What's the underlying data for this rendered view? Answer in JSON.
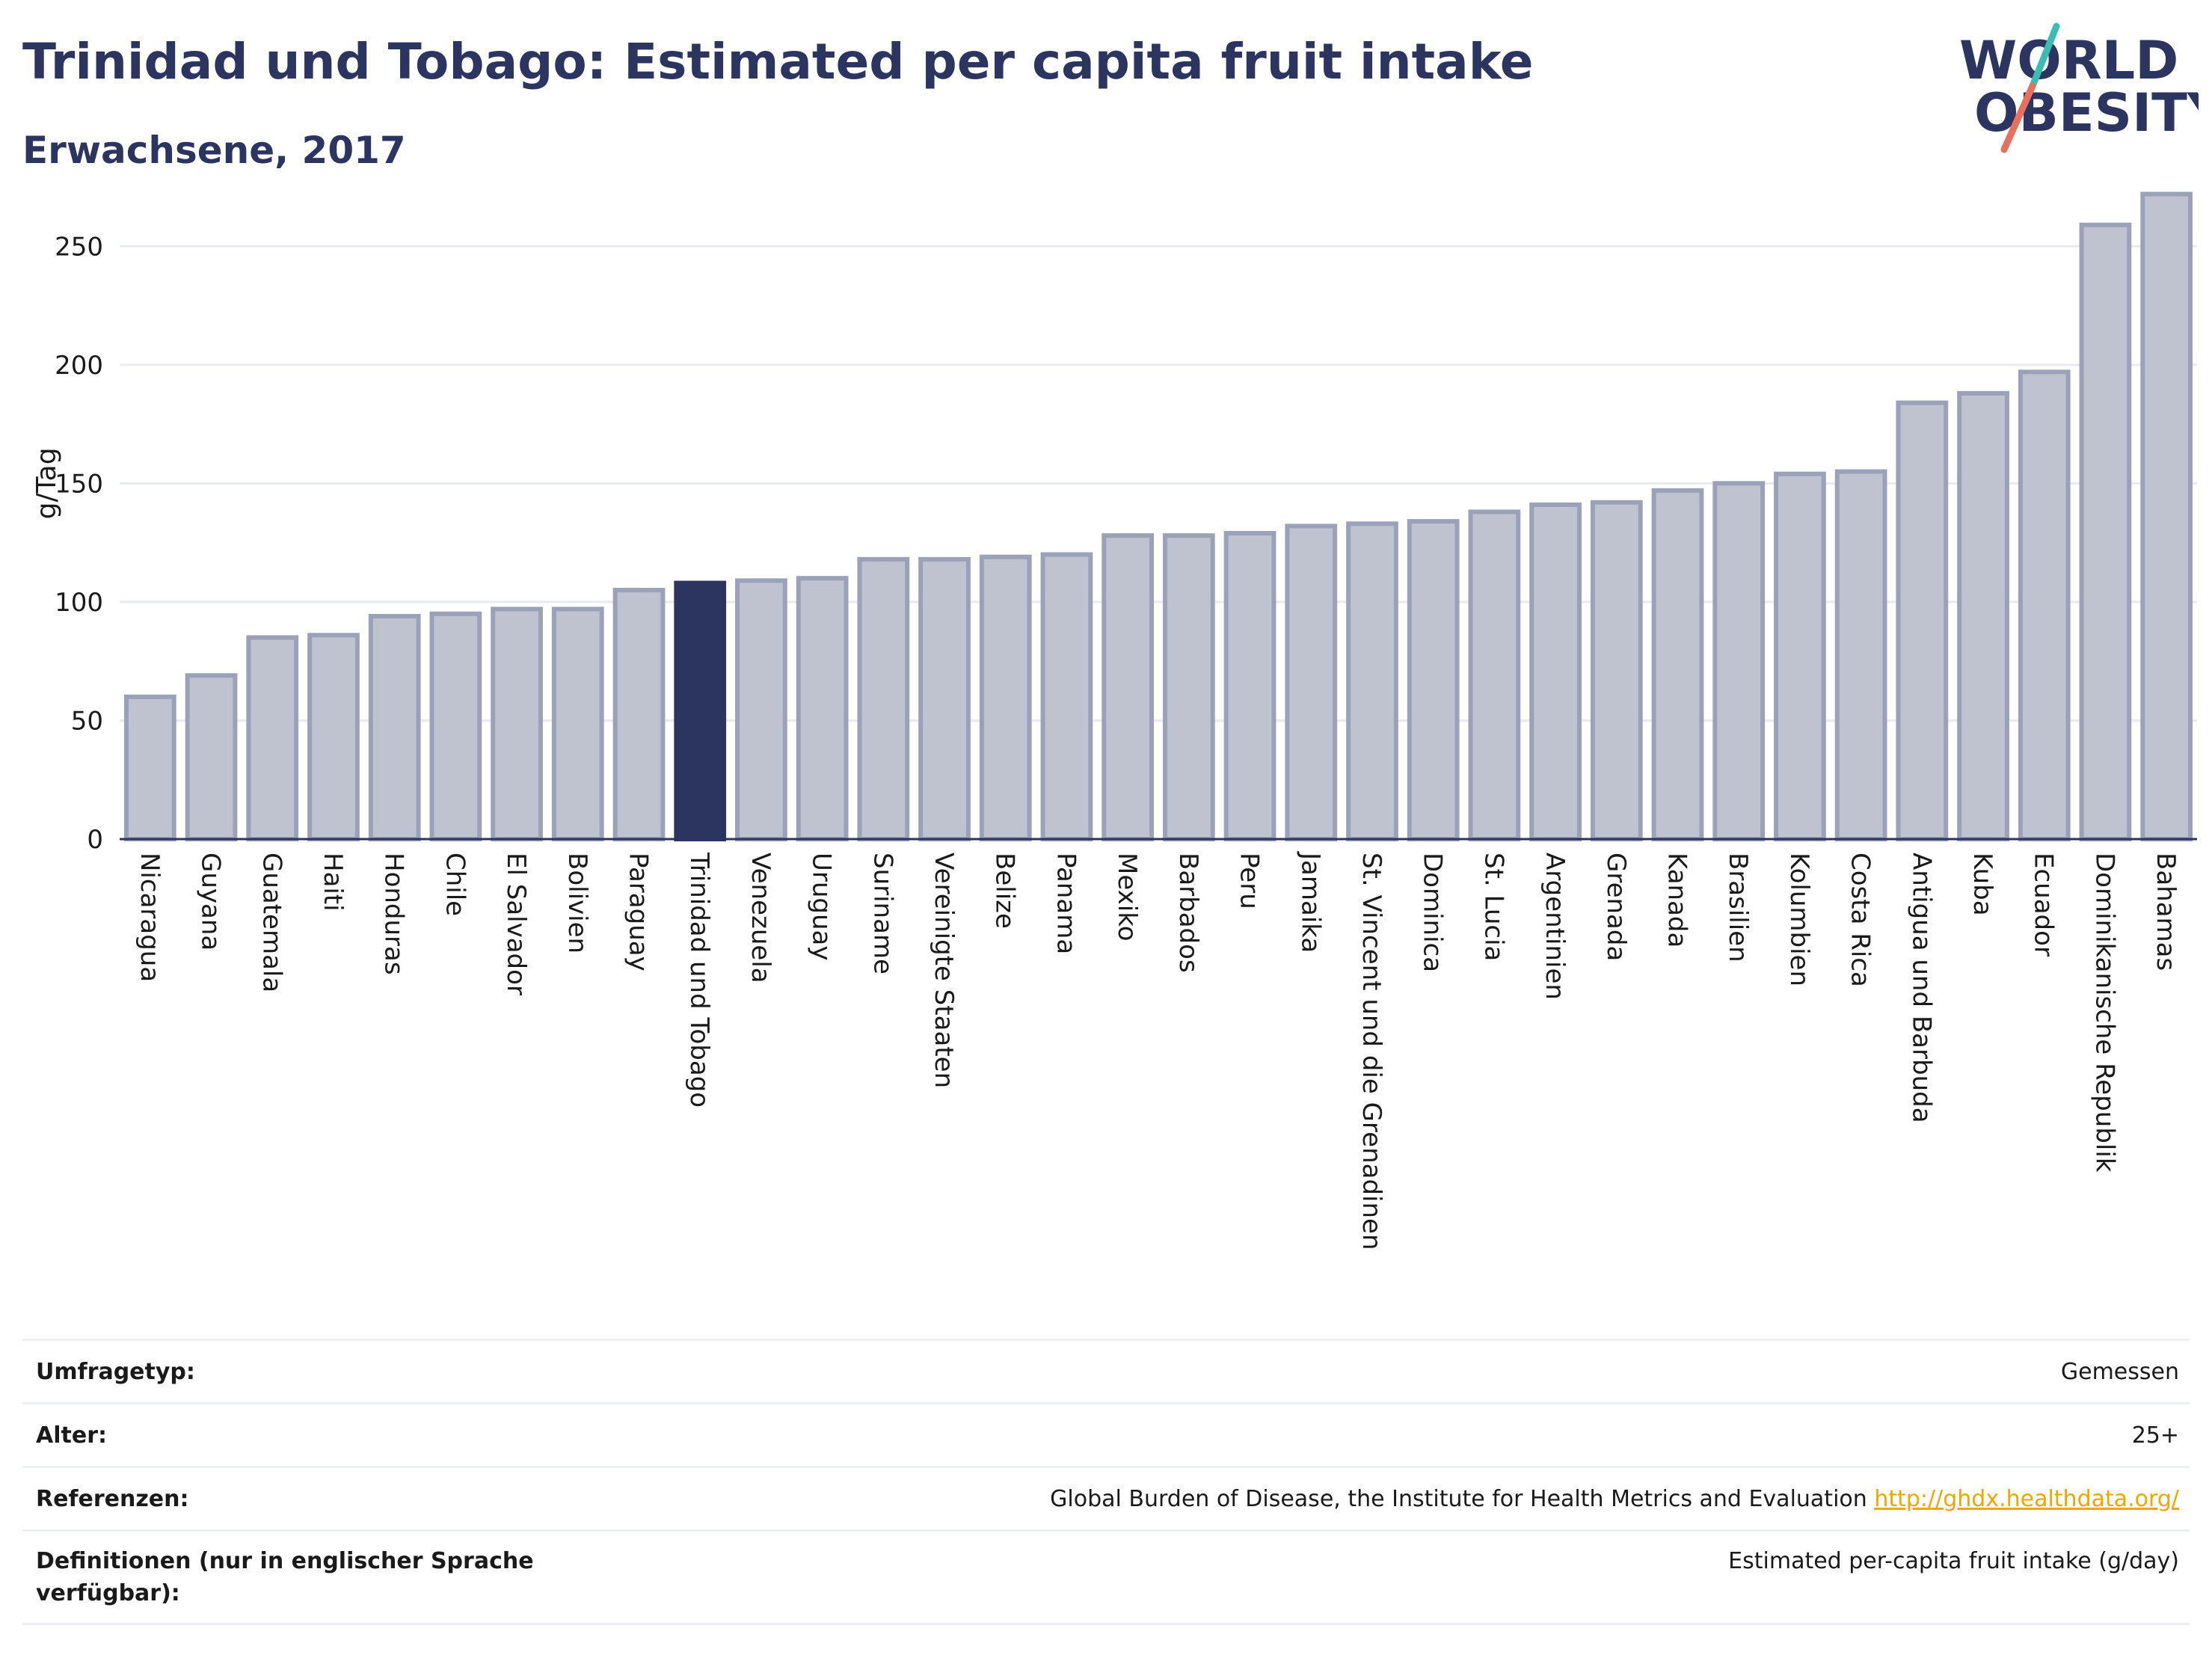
{
  "header": {
    "title": "Trinidad und Tobago: Estimated per capita fruit intake",
    "subtitle": "Erwachsene, 2017",
    "logo_line1": "WORLD",
    "logo_line2": "OBESITY"
  },
  "chart_data": {
    "type": "bar",
    "title": "Trinidad und Tobago: Estimated per capita fruit intake",
    "subtitle": "Erwachsene, 2017",
    "xlabel": "",
    "ylabel": "g/Tag",
    "ylim": [
      0,
      275
    ],
    "yticks": [
      0,
      50,
      100,
      150,
      200,
      250
    ],
    "grid": true,
    "highlight": "Trinidad und Tobago",
    "colors": {
      "bar_fill": "#bfc3d0",
      "bar_stroke": "#9aa1b8",
      "highlight": "#2c3560",
      "grid": "#e8eaf0",
      "axis": "#2c3560"
    },
    "categories": [
      "Nicaragua",
      "Guyana",
      "Guatemala",
      "Haiti",
      "Honduras",
      "Chile",
      "El Salvador",
      "Bolivien",
      "Paraguay",
      "Trinidad und Tobago",
      "Venezuela",
      "Uruguay",
      "Suriname",
      "Vereinigte Staaten",
      "Belize",
      "Panama",
      "Mexiko",
      "Barbados",
      "Peru",
      "Jamaika",
      "St. Vincent und die Grenadinen",
      "Dominica",
      "St. Lucia",
      "Argentinien",
      "Grenada",
      "Kanada",
      "Brasilien",
      "Kolumbien",
      "Costa Rica",
      "Antigua und Barbuda",
      "Kuba",
      "Ecuador",
      "Dominikanische Republik",
      "Bahamas"
    ],
    "values": [
      60,
      69,
      85,
      86,
      94,
      95,
      97,
      97,
      105,
      108,
      109,
      110,
      118,
      118,
      119,
      120,
      128,
      128,
      129,
      132,
      133,
      134,
      138,
      141,
      142,
      147,
      150,
      154,
      155,
      184,
      188,
      197,
      259,
      272
    ]
  },
  "info": {
    "rows": [
      {
        "key": "Umfragetyp:",
        "value": "Gemessen"
      },
      {
        "key": "Alter:",
        "value": "25+"
      },
      {
        "key": "Referenzen:",
        "value": "Global Burden of Disease, the Institute for Health Metrics and Evaluation ",
        "link": "http://ghdx.healthdata.org/"
      },
      {
        "key_line1": "Definitionen (nur in englischer Sprache",
        "key_line2": "verfügbar):",
        "value": "Estimated per-capita fruit intake (g/day)"
      }
    ]
  }
}
